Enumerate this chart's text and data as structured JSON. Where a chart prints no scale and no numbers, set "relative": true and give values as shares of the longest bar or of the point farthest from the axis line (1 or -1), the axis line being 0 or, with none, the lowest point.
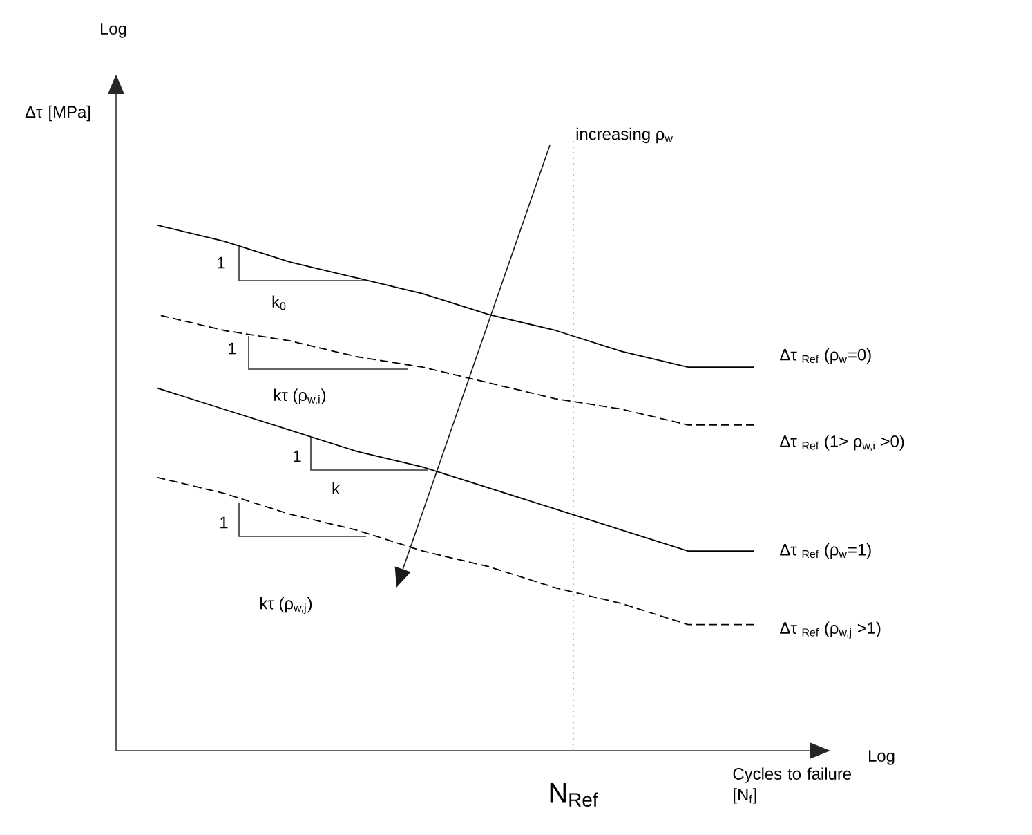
{
  "chart_data": {
    "type": "line",
    "relative": true,
    "categories": [
      null,
      null,
      null,
      null,
      null,
      null,
      null,
      null,
      null,
      null
    ],
    "xlabel": "Cycles to failure [N$_{f}$]",
    "series": [
      {
        "name": "Δτ $_{Ref}$ (ρ$_{w}$=0)",
        "color": "#000000",
        "line_style": "solid",
        "values": [
          1,
          0.97,
          0.93,
          0.9,
          0.87,
          0.83,
          0.8,
          0.76,
          0.73,
          0.73
        ]
      },
      {
        "name": "Δτ $_{Ref}$ (1> ρ$_{w,i}$ >0)",
        "color": "#000000",
        "line_style": "dashed",
        "values": [
          0.83,
          0.8,
          0.78,
          0.75,
          0.73,
          0.7,
          0.67,
          0.65,
          0.62,
          0.62
        ]
      },
      {
        "name": "Δτ $_{Ref}$ (ρ$_{w}$=1)",
        "color": "#000000",
        "line_style": "solid",
        "values": [
          0.69,
          0.65,
          0.61,
          0.57,
          0.54,
          0.5,
          0.46,
          0.42,
          0.38,
          0.38
        ]
      },
      {
        "name": "Δτ $_{Ref}$ (ρ$_{w,j}$ >1)",
        "color": "#000000",
        "line_style": "dashed",
        "values": [
          0.52,
          0.49,
          0.45,
          0.42,
          0.38,
          0.35,
          0.31,
          0.28,
          0.24,
          0.24
        ]
      }
    ],
    "annotations": [
      "Log",
      "Log",
      "increasing ρ$_{w}$",
      "1",
      "k$_{0}$",
      "1",
      "kτ (ρ$_{w,i}$)",
      "1",
      "k",
      "1",
      "kτ (ρ$_{w,j}$)",
      "Δτ [MPa]",
      "N$_{Ref}$"
    ]
  }
}
